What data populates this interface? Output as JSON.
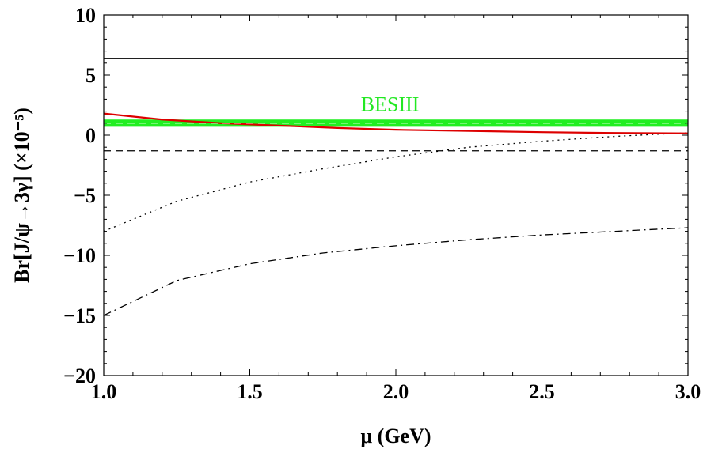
{
  "chart_data": {
    "type": "line",
    "xlabel": "μ (GeV)",
    "ylabel": "Br[J/ψ→3γ]  (×10⁻⁵)",
    "xlim": [
      1.0,
      3.0
    ],
    "ylim": [
      -20,
      10
    ],
    "x_ticks": [
      "1.0",
      "1.5",
      "2.0",
      "2.5",
      "3.0"
    ],
    "y_ticks": [
      "10",
      "5",
      "0",
      "−5",
      "−10",
      "−15",
      "−20"
    ],
    "grid": false,
    "annotation": {
      "text": "BESIII",
      "color": "#22e822",
      "x": 1.98,
      "y": 2.6
    },
    "band": {
      "name": "BESIII",
      "color": "#22ee22",
      "y_low": 0.7,
      "y_high": 1.3,
      "center": 1.0
    },
    "series": [
      {
        "style": "solid",
        "color": "#000000",
        "x": [
          1.0,
          3.0
        ],
        "y": [
          6.4,
          6.4
        ]
      },
      {
        "style": "dashed",
        "color": "#000000",
        "x": [
          1.0,
          3.0
        ],
        "y": [
          -1.3,
          -1.3
        ]
      },
      {
        "style": "dotted",
        "color": "#000000",
        "x": [
          1.0,
          1.25,
          1.5,
          1.75,
          2.0,
          2.25,
          2.5,
          2.75,
          3.0
        ],
        "y": [
          -8.0,
          -5.5,
          -3.9,
          -2.8,
          -1.8,
          -1.0,
          -0.5,
          -0.1,
          0.2
        ]
      },
      {
        "style": "dashdot",
        "color": "#000000",
        "x": [
          1.0,
          1.25,
          1.5,
          1.75,
          2.0,
          2.25,
          2.5,
          2.75,
          3.0
        ],
        "y": [
          -15.0,
          -12.1,
          -10.7,
          -9.8,
          -9.2,
          -8.7,
          -8.3,
          -8.0,
          -7.7
        ]
      },
      {
        "style": "solid",
        "color": "#dd0000",
        "x": [
          1.0,
          1.2,
          1.4,
          1.6,
          1.8,
          2.0,
          2.25,
          2.5,
          2.75,
          3.0
        ],
        "y": [
          1.8,
          1.3,
          1.0,
          0.8,
          0.6,
          0.45,
          0.35,
          0.25,
          0.18,
          0.15
        ]
      },
      {
        "style": "dashed",
        "color": "#ffffff",
        "x": [
          1.0,
          3.0
        ],
        "y": [
          1.0,
          1.0
        ]
      }
    ]
  }
}
